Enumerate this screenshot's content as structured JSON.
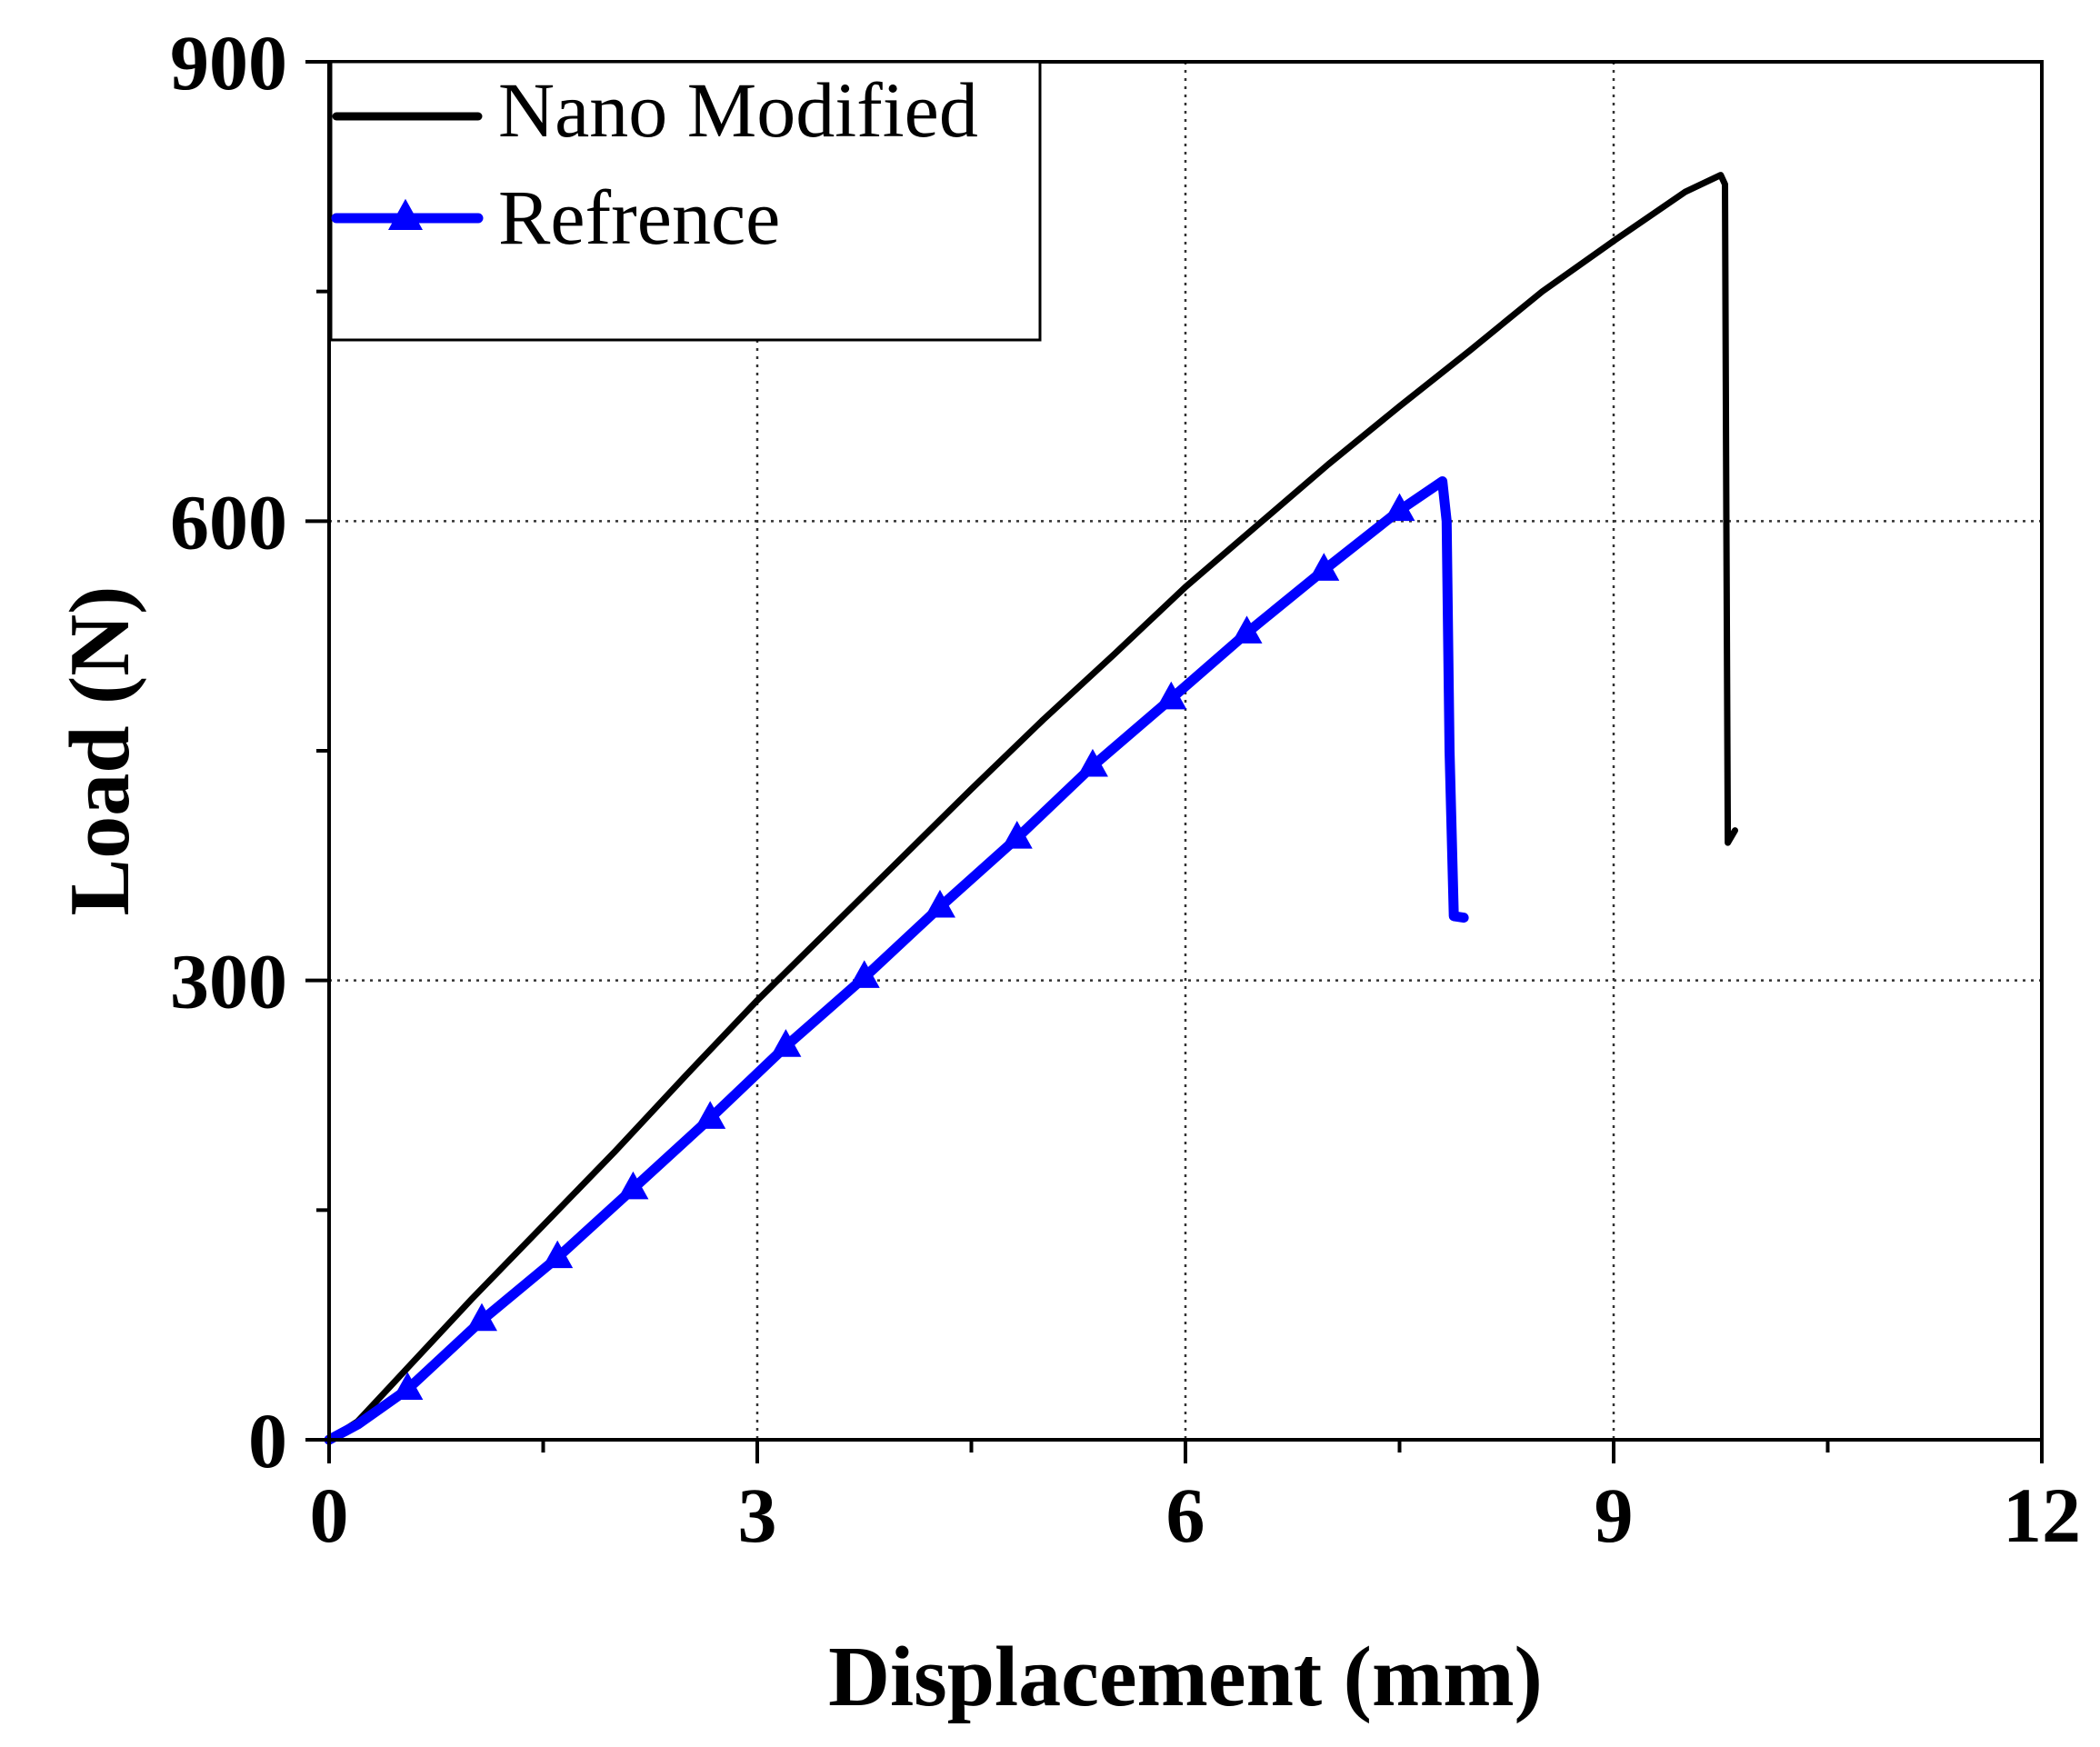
{
  "chart_data": {
    "type": "line",
    "xlabel": "Displacement (mm)",
    "ylabel": "Load (N)",
    "xlim": [
      0,
      12
    ],
    "ylim": [
      0,
      900
    ],
    "xticks": [
      0,
      3,
      6,
      9,
      12
    ],
    "yticks": [
      0,
      300,
      600,
      900
    ],
    "xtick_labels": [
      "0",
      "3",
      "6",
      "9",
      "12"
    ],
    "ytick_labels": [
      "0",
      "300",
      "600",
      "900"
    ],
    "x_minor_ticks": [
      1.5,
      4.5,
      7.5,
      10.5
    ],
    "y_minor_ticks": [
      150,
      450,
      750
    ],
    "grid": true,
    "legend_position": "top-left",
    "series": [
      {
        "name": "Nano Modified",
        "color": "#000000",
        "marker": "none",
        "x": [
          0,
          0.2,
          0.5,
          1.0,
          1.5,
          2.0,
          2.5,
          3.0,
          3.5,
          4.0,
          4.5,
          5.0,
          5.5,
          6.0,
          6.5,
          7.0,
          7.5,
          8.0,
          8.5,
          9.0,
          9.5,
          9.75,
          9.78,
          9.79,
          9.8,
          9.85
        ],
        "y": [
          0,
          12,
          42,
          92,
          140,
          188,
          238,
          287,
          333,
          379,
          425,
          470,
          513,
          557,
          597,
          637,
          675,
          712,
          750,
          783,
          815,
          826,
          820,
          600,
          390,
          398
        ]
      },
      {
        "name": "Refrence",
        "color": "#0000ff",
        "marker": "triangle",
        "x": [
          0,
          0.2,
          0.55,
          1.07,
          1.6,
          2.13,
          2.67,
          3.2,
          3.75,
          4.28,
          4.82,
          5.35,
          5.9,
          6.43,
          6.97,
          7.5,
          7.8,
          7.83,
          7.85,
          7.88,
          7.95
        ],
        "y": [
          0,
          10,
          33,
          78,
          119,
          164,
          210,
          257,
          302,
          348,
          393,
          440,
          484,
          527,
          568,
          607,
          626,
          600,
          450,
          342,
          341
        ],
        "marker_x": [
          0.55,
          1.07,
          1.6,
          2.13,
          2.67,
          3.2,
          3.75,
          4.28,
          4.82,
          5.35,
          5.9,
          6.43,
          6.97,
          7.5
        ],
        "marker_y": [
          33,
          78,
          119,
          164,
          210,
          257,
          302,
          348,
          393,
          440,
          484,
          527,
          568,
          607
        ]
      }
    ]
  }
}
